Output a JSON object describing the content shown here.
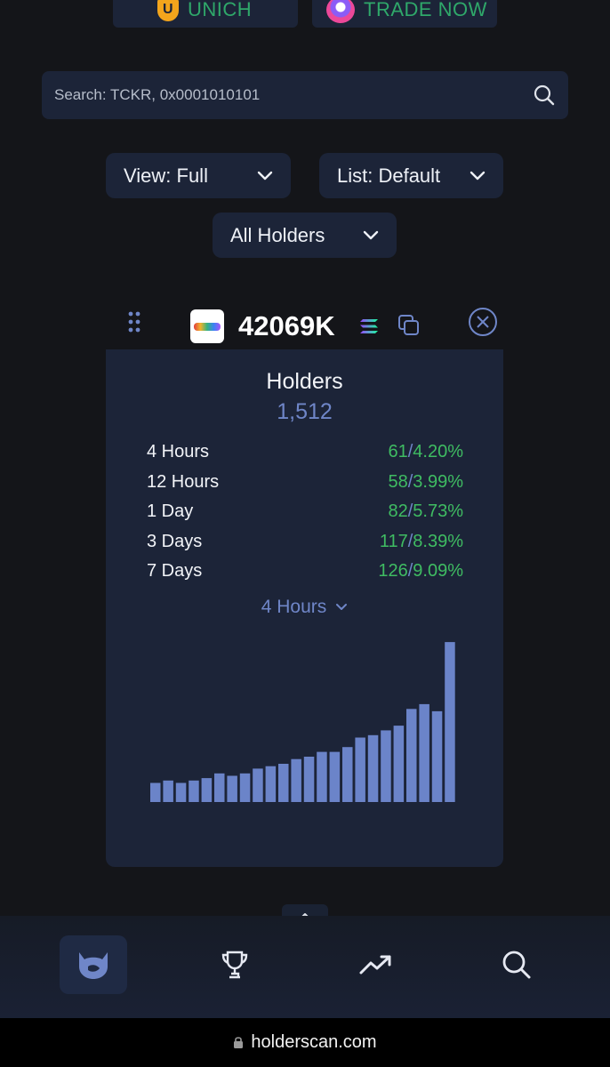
{
  "top_buttons": {
    "unich_label": "UNICH",
    "trade_label": "TRADE NOW"
  },
  "search": {
    "placeholder": "Search: TCKR, 0x0001010101"
  },
  "filters": {
    "view_label": "View: Full",
    "list_label": "List: Default",
    "holders_label": "All Holders"
  },
  "token": {
    "name": "42069K"
  },
  "card": {
    "title": "Holders",
    "count": "1,512",
    "stats": [
      {
        "label": "4 Hours",
        "change": "61",
        "percent": "4.20%"
      },
      {
        "label": "12 Hours",
        "change": "58",
        "percent": "3.99%"
      },
      {
        "label": "1 Day",
        "change": "82",
        "percent": "5.73%"
      },
      {
        "label": "3 Days",
        "change": "117",
        "percent": "8.39%"
      },
      {
        "label": "7 Days",
        "change": "126",
        "percent": "9.09%"
      }
    ],
    "period_label": "4 Hours"
  },
  "chart_data": {
    "type": "bar",
    "values": [
      8,
      9,
      8,
      9,
      10,
      12,
      11,
      12,
      14,
      15,
      16,
      18,
      19,
      21,
      21,
      23,
      27,
      28,
      30,
      32,
      39,
      41,
      38,
      67
    ],
    "ylim": [
      0,
      70
    ],
    "bar_color": "#6b84c9"
  },
  "nav": {
    "items": [
      "home",
      "leaderboard",
      "trending",
      "search"
    ]
  },
  "browser": {
    "url": "holderscan.com"
  },
  "colors": {
    "background": "#141519",
    "panel": "#1c2438",
    "accent_blue": "#6f86c8",
    "positive_green": "#3fbc62"
  }
}
